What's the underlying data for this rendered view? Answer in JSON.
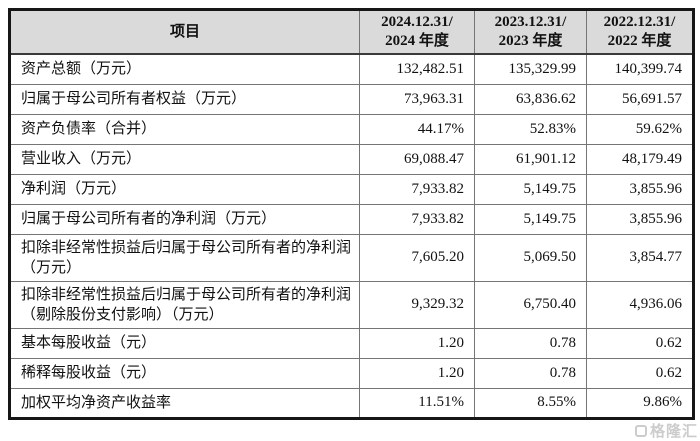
{
  "table": {
    "item_header": "项目",
    "columns": [
      {
        "line1": "2024.12.31/",
        "line2": "2024 年度"
      },
      {
        "line1": "2023.12.31/",
        "line2": "2023 年度"
      },
      {
        "line1": "2022.12.31/",
        "line2": "2022 年度"
      }
    ],
    "rows": [
      {
        "label": "资产总额（万元）",
        "values": [
          "132,482.51",
          "135,329.99",
          "140,399.74"
        ],
        "tall": false
      },
      {
        "label": "归属于母公司所有者权益（万元）",
        "values": [
          "73,963.31",
          "63,836.62",
          "56,691.57"
        ],
        "tall": false
      },
      {
        "label": "资产负债率（合并）",
        "values": [
          "44.17%",
          "52.83%",
          "59.62%"
        ],
        "tall": false
      },
      {
        "label": "营业收入（万元）",
        "values": [
          "69,088.47",
          "61,901.12",
          "48,179.49"
        ],
        "tall": false
      },
      {
        "label": "净利润（万元）",
        "values": [
          "7,933.82",
          "5,149.75",
          "3,855.96"
        ],
        "tall": false
      },
      {
        "label": "归属于母公司所有者的净利润（万元）",
        "values": [
          "7,933.82",
          "5,149.75",
          "3,855.96"
        ],
        "tall": false
      },
      {
        "label": "扣除非经常性损益后归属于母公司所有者的净利润（万元）",
        "values": [
          "7,605.20",
          "5,069.50",
          "3,854.77"
        ],
        "tall": true
      },
      {
        "label": "扣除非经常性损益后归属于母公司所有者的净利润（剔除股份支付影响）（万元）",
        "values": [
          "9,329.32",
          "6,750.40",
          "4,936.06"
        ],
        "tall": true
      },
      {
        "label": "基本每股收益（元）",
        "values": [
          "1.20",
          "0.78",
          "0.62"
        ],
        "tall": false
      },
      {
        "label": "稀释每股收益（元）",
        "values": [
          "1.20",
          "0.78",
          "0.62"
        ],
        "tall": false
      },
      {
        "label": "加权平均净资产收益率",
        "values": [
          "11.51%",
          "8.55%",
          "9.86%"
        ],
        "tall": false
      }
    ]
  },
  "watermark": {
    "text": "格隆汇"
  },
  "colors": {
    "header_bg": "#dadada",
    "outer_border": "#161616",
    "inner_border": "#757575",
    "watermark": "#c7c7c7"
  }
}
